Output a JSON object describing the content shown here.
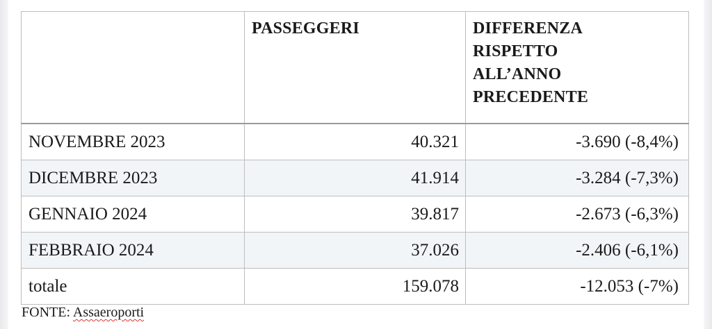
{
  "table": {
    "headers": [
      "",
      "PASSEGGERI",
      "DIFFERENZA RISPETTO ALL’ANNO PRECEDENTE"
    ],
    "header_lines": [
      "DIFFERENZA",
      "RISPETTO",
      "ALL’ANNO",
      "PRECEDENTE"
    ],
    "rows": [
      {
        "label": "NOVEMBRE 2023",
        "passengers": "40.321",
        "difference": "-3.690 (-8,4%)"
      },
      {
        "label": "DICEMBRE 2023",
        "passengers": "41.914",
        "difference": "-3.284 (-7,3%)"
      },
      {
        "label": "GENNAIO 2024",
        "passengers": "39.817",
        "difference": "-2.673 (-6,3%)"
      },
      {
        "label": "FEBBRAIO 2024",
        "passengers": "37.026",
        "difference": "-2.406 (-6,1%)"
      },
      {
        "label": "totale",
        "passengers": "159.078",
        "difference": "-12.053 (-7%)"
      }
    ]
  },
  "source": {
    "prefix": "FONTE: ",
    "name": "Assaeroporti"
  }
}
